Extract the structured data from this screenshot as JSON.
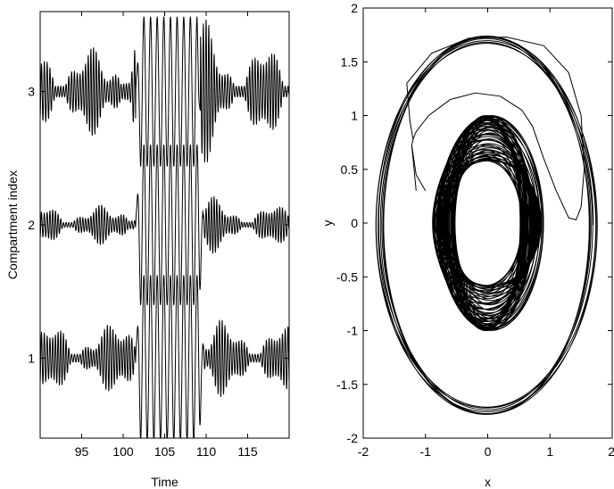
{
  "chart_data": [
    {
      "type": "line",
      "xlabel": "Time",
      "ylabel": "Compartment index",
      "xlim": [
        90,
        120
      ],
      "ylim": [
        0.4,
        3.6
      ],
      "x_ticks": [
        95,
        100,
        105,
        110,
        115
      ],
      "y_ticks": [
        1,
        2,
        3
      ],
      "grid": false,
      "series": [
        {
          "index": 3,
          "baseline": 3,
          "small_amplitude": 0.27,
          "burst_amplitude": 0.56,
          "burst_window": [
            101.5,
            109.3
          ],
          "osc_period": 0.33,
          "burst_period": 0.8
        },
        {
          "index": 2,
          "baseline": 2,
          "small_amplitude": 0.12,
          "burst_amplitude": 0.6,
          "burst_window": [
            101.5,
            109.6
          ],
          "osc_period": 0.33,
          "burst_period": 0.8
        },
        {
          "index": 1,
          "baseline": 1,
          "small_amplitude": 0.2,
          "burst_amplitude": 0.62,
          "burst_window": [
            101.5,
            109.6
          ],
          "osc_period": 0.33,
          "burst_period": 0.8
        }
      ]
    },
    {
      "type": "line",
      "xlabel": "x",
      "ylabel": "y",
      "xlim": [
        -2,
        2
      ],
      "ylim": [
        -2,
        2
      ],
      "x_ticks": [
        -2,
        -1,
        0,
        1,
        2
      ],
      "y_ticks": [
        -2,
        -1.5,
        -1,
        -0.5,
        0,
        0.5,
        1,
        1.5,
        2
      ],
      "grid": false,
      "orbits": {
        "inner": {
          "rx_range": [
            0.55,
            0.85
          ],
          "ry_range": [
            0.58,
            1.0
          ]
        },
        "outer": {
          "rx_range": [
            1.65,
            1.78
          ],
          "ry_range": [
            1.69,
            1.76
          ]
        },
        "transition_lobe": {
          "x": [
            -1.2,
            1.45
          ],
          "y": [
            1.2,
            0.0
          ]
        }
      }
    }
  ]
}
